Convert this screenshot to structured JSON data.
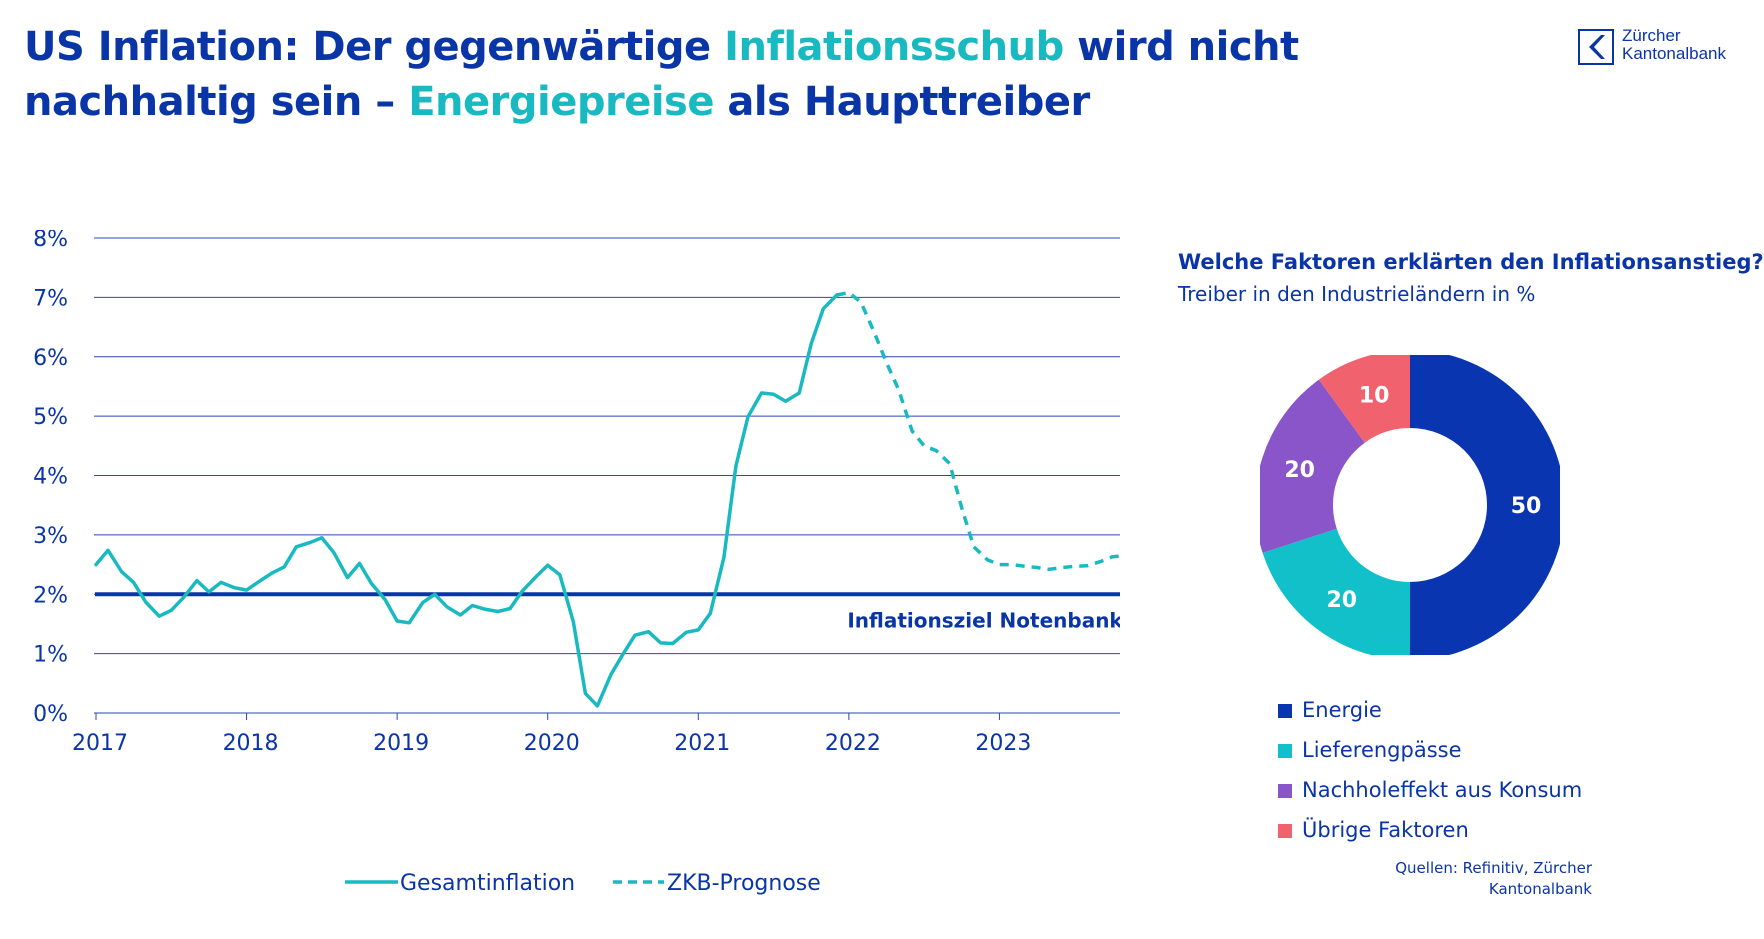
{
  "header": {
    "title_part1": "US Inflation: Der gegenwärtige ",
    "title_highlight1": "Inflationsschub",
    "title_part2": " wird nicht nachhaltig sein – ",
    "title_highlight2": "Energiepreise",
    "title_part3": " als Haupttreiber",
    "logo_line1": "Zürcher",
    "logo_line2": "Kantonalbank"
  },
  "colors": {
    "title": "#0a35a6",
    "highlight": "#19b9c2",
    "line": "#19b9c2",
    "target": "#0a35a6",
    "grid": "#2a48b0"
  },
  "source": {
    "line1": "Quellen: Refinitiv, Zürcher",
    "line2": "Kantonalbank"
  },
  "chart_data": [
    {
      "type": "line",
      "ylim": [
        0,
        8
      ],
      "xlim": [
        2017.0,
        2024.0
      ],
      "y_ticks": [
        "0%",
        "1%",
        "2%",
        "3%",
        "4%",
        "5%",
        "6%",
        "7%",
        "8%"
      ],
      "x_ticks": [
        "2017",
        "2018",
        "2019",
        "2020",
        "2021",
        "2022",
        "2023"
      ],
      "grid": true,
      "target_line": {
        "value": 2.0,
        "label": "Inflationsziel Notenbanken"
      },
      "legend": [
        "Gesamtinflation",
        "ZKB-Prognose"
      ],
      "series": [
        {
          "name": "Gesamtinflation",
          "style": "solid",
          "x": [
            2017.0,
            2017.08,
            2017.17,
            2017.25,
            2017.33,
            2017.42,
            2017.5,
            2017.58,
            2017.67,
            2017.75,
            2017.83,
            2017.92,
            2018.0,
            2018.08,
            2018.17,
            2018.25,
            2018.33,
            2018.42,
            2018.5,
            2018.58,
            2018.67,
            2018.75,
            2018.83,
            2018.92,
            2019.0,
            2019.08,
            2019.17,
            2019.25,
            2019.33,
            2019.42,
            2019.5,
            2019.58,
            2019.67,
            2019.75,
            2019.83,
            2019.92,
            2020.0,
            2020.08,
            2020.17,
            2020.25,
            2020.33,
            2020.42,
            2020.5,
            2020.58,
            2020.67,
            2020.75,
            2020.83,
            2020.92,
            2021.0,
            2021.08,
            2021.17,
            2021.25,
            2021.33,
            2021.42,
            2021.5,
            2021.58,
            2021.67,
            2021.75,
            2021.83,
            2021.92
          ],
          "values": [
            2.5,
            2.74,
            2.38,
            2.2,
            1.87,
            1.63,
            1.73,
            1.94,
            2.23,
            2.04,
            2.2,
            2.11,
            2.07,
            2.21,
            2.36,
            2.46,
            2.8,
            2.87,
            2.95,
            2.7,
            2.28,
            2.52,
            2.18,
            1.91,
            1.55,
            1.52,
            1.86,
            2.0,
            1.79,
            1.65,
            1.81,
            1.75,
            1.71,
            1.76,
            2.05,
            2.29,
            2.49,
            2.33,
            1.54,
            0.33,
            0.12,
            0.65,
            0.99,
            1.31,
            1.37,
            1.18,
            1.17,
            1.36,
            1.4,
            1.68,
            2.62,
            4.16,
            4.99,
            5.39,
            5.37,
            5.25,
            5.39,
            6.22,
            6.81,
            7.04
          ]
        },
        {
          "name": "ZKB-Prognose",
          "style": "dashed",
          "x": [
            2021.92,
            2022.0,
            2022.08,
            2022.17,
            2022.25,
            2022.33,
            2022.42,
            2022.5,
            2022.58,
            2022.67,
            2022.75,
            2022.83,
            2022.92,
            2023.0,
            2023.08,
            2023.17,
            2023.25,
            2023.33,
            2023.42,
            2023.5,
            2023.58,
            2023.67,
            2023.75,
            2023.83,
            2023.92,
            2024.0
          ],
          "values": [
            7.04,
            7.08,
            6.92,
            6.4,
            5.9,
            5.45,
            4.75,
            4.5,
            4.42,
            4.2,
            3.45,
            2.8,
            2.58,
            2.5,
            2.5,
            2.47,
            2.45,
            2.42,
            2.45,
            2.47,
            2.48,
            2.55,
            2.63,
            2.65,
            2.68,
            2.67
          ]
        }
      ]
    },
    {
      "type": "pie",
      "title": "Welche Faktoren erklärten den Inflationsanstieg?",
      "subtitle": "Treiber in den Industrieländern in %",
      "categories": [
        "Energie",
        "Lieferengpässe",
        "Nachholeffekt aus Konsum",
        "Übrige Faktoren"
      ],
      "values": [
        50,
        20,
        20,
        10
      ],
      "value_labels": [
        "50",
        "20",
        "20",
        "10"
      ],
      "colors": [
        "#0a35b0",
        "#12c0ca",
        "#8a55c8",
        "#f0636e"
      ],
      "legend_placement": "bottom"
    }
  ]
}
